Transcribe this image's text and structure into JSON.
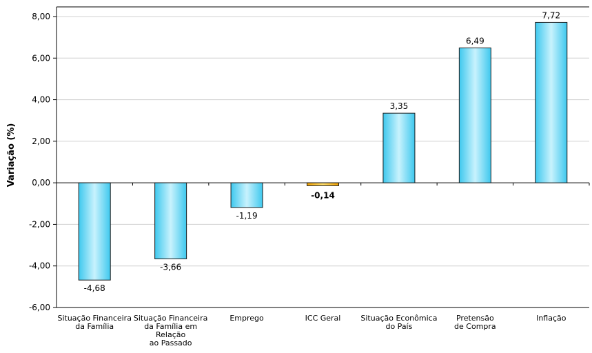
{
  "chart_data": {
    "type": "bar",
    "title": "",
    "xlabel": "",
    "ylabel": "Variação (%)",
    "ylim": [
      -6,
      8
    ],
    "ytick_step": 2,
    "yticks": [
      "8,00",
      "6,00",
      "4,00",
      "2,00",
      "0,00",
      "-2,00",
      "-4,00",
      "-6,00"
    ],
    "grid": true,
    "categories": [
      [
        "Situação Financeira",
        "da Família"
      ],
      [
        "Situação Financeira",
        "da Família em",
        "Relação",
        "ao Passado"
      ],
      [
        "Emprego"
      ],
      [
        "ICC Geral"
      ],
      [
        "Situação Econômica",
        "do País"
      ],
      [
        "Pretensão",
        "de Compra"
      ],
      [
        "Inflação"
      ]
    ],
    "values": [
      -4.68,
      -3.66,
      -1.19,
      -0.14,
      3.35,
      6.49,
      7.72
    ],
    "value_labels": [
      "-4,68",
      "-3,66",
      "-1,19",
      "-0,14",
      "3,35",
      "6,49",
      "7,72"
    ],
    "highlight_index": 3,
    "colors": {
      "bar_fill_edge": "#3ec8ee",
      "bar_fill_center": "#c8f2fd",
      "bar_stroke": "#1a1a1a",
      "highlight_fill_edge": "#f0a000",
      "highlight_fill_center": "#ffe070",
      "grid": "#d0d0d0",
      "axis": "#000000",
      "text": "#000000"
    }
  }
}
